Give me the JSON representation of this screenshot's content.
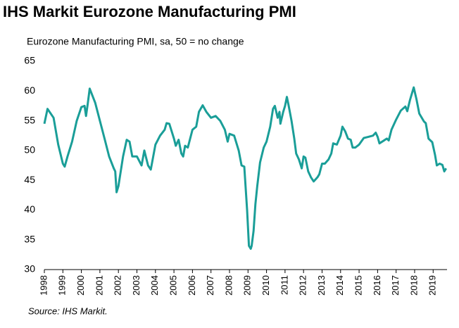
{
  "chart_data": {
    "type": "line",
    "title": "IHS Markit Eurozone Manufacturing PMI",
    "subtitle": "Eurozone Manufacturing PMI, sa, 50 = no change",
    "source": "Source: IHS Markit.",
    "series": [
      {
        "name": "Eurozone Manufacturing PMI",
        "color": "#1a9e98",
        "x": [
          1998.0,
          1998.17,
          1998.5,
          1998.75,
          1999.0,
          1999.1,
          1999.25,
          1999.5,
          1999.75,
          2000.0,
          2000.17,
          2000.25,
          2000.35,
          2000.45,
          2000.75,
          2001.0,
          2001.25,
          2001.5,
          2001.75,
          2001.83,
          2001.9,
          2002.0,
          2002.25,
          2002.45,
          2002.6,
          2002.75,
          2003.0,
          2003.25,
          2003.4,
          2003.6,
          2003.75,
          2004.0,
          2004.25,
          2004.5,
          2004.6,
          2004.75,
          2005.0,
          2005.1,
          2005.25,
          2005.4,
          2005.5,
          2005.6,
          2005.75,
          2006.0,
          2006.2,
          2006.35,
          2006.55,
          2006.75,
          2007.0,
          2007.25,
          2007.5,
          2007.75,
          2007.9,
          2008.0,
          2008.25,
          2008.5,
          2008.65,
          2008.8,
          2008.95,
          2009.05,
          2009.15,
          2009.2,
          2009.3,
          2009.4,
          2009.5,
          2009.65,
          2009.85,
          2010.0,
          2010.2,
          2010.35,
          2010.45,
          2010.6,
          2010.7,
          2010.75,
          2010.9,
          2011.0,
          2011.1,
          2011.2,
          2011.35,
          2011.5,
          2011.6,
          2011.75,
          2011.9,
          2012.0,
          2012.1,
          2012.25,
          2012.4,
          2012.55,
          2012.75,
          2012.85,
          2013.0,
          2013.15,
          2013.35,
          2013.5,
          2013.6,
          2013.8,
          2014.0,
          2014.1,
          2014.25,
          2014.4,
          2014.55,
          2014.65,
          2014.8,
          2015.0,
          2015.25,
          2015.5,
          2015.75,
          2015.9,
          2016.0,
          2016.1,
          2016.3,
          2016.5,
          2016.6,
          2016.75,
          2017.0,
          2017.25,
          2017.5,
          2017.6,
          2017.75,
          2017.95,
          2018.1,
          2018.25,
          2018.5,
          2018.6,
          2018.75,
          2018.95,
          2019.1,
          2019.2,
          2019.35,
          2019.5,
          2019.6,
          2019.7
        ],
        "values": [
          54.5,
          57,
          55.5,
          51,
          47.8,
          47.3,
          49,
          51.5,
          55,
          57.3,
          57.5,
          55.8,
          58,
          60.4,
          58,
          55,
          52,
          49,
          47,
          46.5,
          43,
          44,
          49,
          51.8,
          51.5,
          49,
          49,
          47.5,
          50,
          47.5,
          46.8,
          51,
          52.5,
          53.5,
          54.6,
          54.5,
          52,
          50.8,
          51.8,
          49.5,
          49,
          50.8,
          50.5,
          53.5,
          54,
          56.5,
          57.6,
          56.5,
          55.5,
          55.8,
          55,
          53.5,
          51.5,
          52.8,
          52.5,
          50,
          47.5,
          47.3,
          40,
          34,
          33.5,
          34,
          36.5,
          41,
          44,
          48,
          50.5,
          51.5,
          54,
          57,
          57.5,
          55.5,
          56.5,
          54.5,
          56.5,
          57.5,
          59,
          57.5,
          55,
          52,
          49.5,
          48.5,
          47,
          49,
          48.8,
          46.5,
          45.5,
          44.8,
          45.5,
          46,
          47.8,
          47.8,
          48.5,
          49.5,
          51.2,
          51,
          52.5,
          54,
          53.2,
          52,
          51.8,
          50.5,
          50.5,
          51,
          52.1,
          52.3,
          52.5,
          53,
          52.3,
          51.2,
          51.6,
          52,
          51.7,
          53.5,
          55.2,
          56.7,
          57.4,
          56.6,
          58.5,
          60.6,
          58.6,
          56.2,
          54.9,
          54.6,
          52,
          51.4,
          49.3,
          47.5,
          47.8,
          47.6,
          46.5,
          47
        ]
      }
    ],
    "xlim": [
      1998,
      2019.75
    ],
    "xticks": [
      1998,
      1999,
      2000,
      2001,
      2002,
      2003,
      2004,
      2005,
      2006,
      2007,
      2008,
      2009,
      2010,
      2011,
      2012,
      2013,
      2014,
      2015,
      2016,
      2017,
      2018,
      2019
    ],
    "ylim": [
      30,
      65
    ],
    "yticks": [
      30,
      35,
      40,
      45,
      50,
      55,
      60,
      65
    ]
  }
}
